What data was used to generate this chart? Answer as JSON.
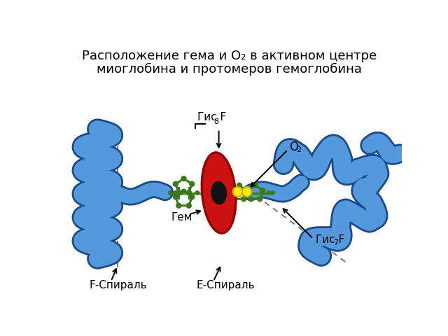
{
  "title_line1": "Расположение гема и О₂ в активном центре",
  "title_line2": "миоглобина и протомеров гемоглобина",
  "title_fontsize": 13,
  "bg_color": "#ffffff",
  "label_gis_f8": "Гис F",
  "label_gis_f8_sub": "8",
  "label_o2": "O",
  "label_o2_sub": "2",
  "label_gem": "Гем",
  "label_gis_f7": "Гис F",
  "label_gis_f7_sub": "7",
  "label_f_spiral": "F-Спираль",
  "label_e_spiral": "E-Спираль",
  "helix_color": "#5599dd",
  "helix_edge": "#1a4a8a",
  "porphyrin_color": "#3a7a1a",
  "heme_disk_color": "#cc1111",
  "heme_edge_color": "#990000",
  "heme_center_color": "#111111",
  "o2_color": "#ffee00",
  "o2_edge_color": "#ccaa00",
  "dashed_color": "#666666"
}
